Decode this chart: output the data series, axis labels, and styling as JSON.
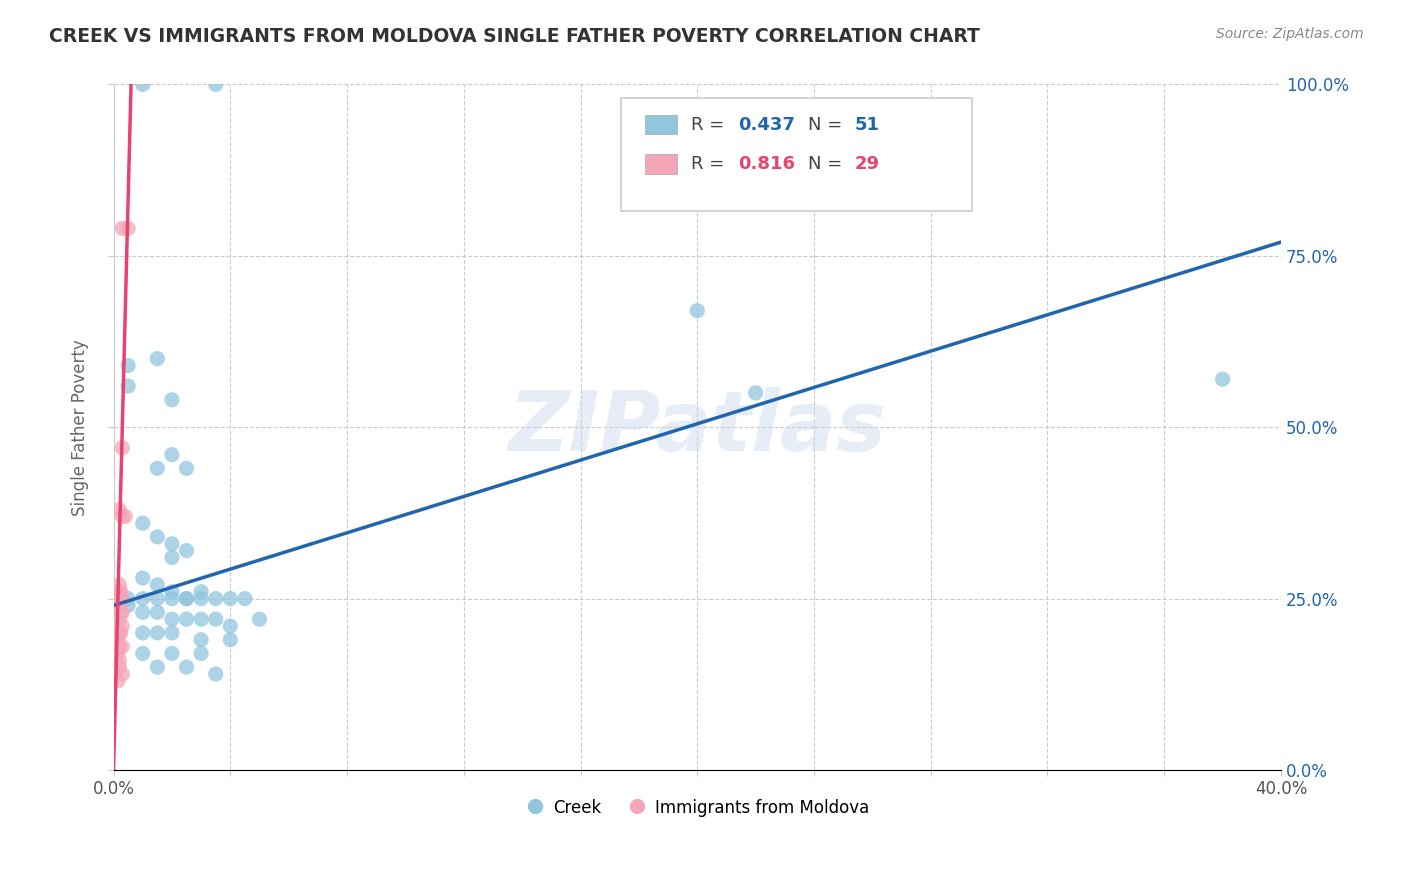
{
  "title": "CREEK VS IMMIGRANTS FROM MOLDOVA SINGLE FATHER POVERTY CORRELATION CHART",
  "source": "Source: ZipAtlas.com",
  "ylabel": "Single Father Poverty",
  "legend_creek": "Creek",
  "legend_moldova": "Immigrants from Moldova",
  "legend_r_creek": "0.437",
  "legend_n_creek": "51",
  "legend_r_moldova": "0.816",
  "legend_n_moldova": "29",
  "watermark": "ZIPatlas",
  "creek_color": "#92c5de",
  "moldova_color": "#f4a6b8",
  "creek_line_color": "#2166ac",
  "moldova_line_color": "#e8436e",
  "creek_scatter": [
    [
      0.5,
      56
    ],
    [
      0.5,
      59
    ],
    [
      1.0,
      100
    ],
    [
      3.5,
      100
    ],
    [
      1.5,
      60
    ],
    [
      2.0,
      54
    ],
    [
      1.5,
      44
    ],
    [
      2.0,
      46
    ],
    [
      2.5,
      44
    ],
    [
      1.0,
      36
    ],
    [
      1.5,
      34
    ],
    [
      2.0,
      33
    ],
    [
      2.0,
      31
    ],
    [
      2.5,
      32
    ],
    [
      1.0,
      28
    ],
    [
      1.5,
      27
    ],
    [
      2.0,
      26
    ],
    [
      2.5,
      25
    ],
    [
      3.0,
      26
    ],
    [
      0.5,
      25
    ],
    [
      1.0,
      25
    ],
    [
      1.5,
      25
    ],
    [
      2.0,
      25
    ],
    [
      2.5,
      25
    ],
    [
      3.0,
      25
    ],
    [
      3.5,
      25
    ],
    [
      4.0,
      25
    ],
    [
      4.5,
      25
    ],
    [
      0.5,
      24
    ],
    [
      1.0,
      23
    ],
    [
      1.5,
      23
    ],
    [
      2.0,
      22
    ],
    [
      2.5,
      22
    ],
    [
      3.0,
      22
    ],
    [
      3.5,
      22
    ],
    [
      4.0,
      21
    ],
    [
      5.0,
      22
    ],
    [
      1.0,
      20
    ],
    [
      1.5,
      20
    ],
    [
      2.0,
      20
    ],
    [
      3.0,
      19
    ],
    [
      4.0,
      19
    ],
    [
      1.0,
      17
    ],
    [
      2.0,
      17
    ],
    [
      3.0,
      17
    ],
    [
      1.5,
      15
    ],
    [
      2.5,
      15
    ],
    [
      3.5,
      14
    ],
    [
      20.0,
      67
    ],
    [
      22.0,
      55
    ],
    [
      38.0,
      57
    ]
  ],
  "moldova_scatter": [
    [
      0.3,
      79
    ],
    [
      0.5,
      79
    ],
    [
      0.3,
      47
    ],
    [
      0.2,
      38
    ],
    [
      0.3,
      37
    ],
    [
      0.4,
      37
    ],
    [
      0.2,
      27
    ],
    [
      0.2,
      26
    ],
    [
      0.25,
      26
    ],
    [
      0.15,
      25
    ],
    [
      0.2,
      25
    ],
    [
      0.25,
      25
    ],
    [
      0.3,
      25
    ],
    [
      0.15,
      24
    ],
    [
      0.2,
      24
    ],
    [
      0.25,
      23
    ],
    [
      0.3,
      23
    ],
    [
      0.2,
      22
    ],
    [
      0.3,
      21
    ],
    [
      0.2,
      20
    ],
    [
      0.25,
      20
    ],
    [
      0.15,
      19
    ],
    [
      0.2,
      18
    ],
    [
      0.3,
      18
    ],
    [
      0.15,
      17
    ],
    [
      0.2,
      16
    ],
    [
      0.2,
      15
    ],
    [
      0.3,
      14
    ],
    [
      0.15,
      13
    ]
  ],
  "xlim": [
    0.0,
    40.0
  ],
  "ylim": [
    0.0,
    100.0
  ],
  "xtick_positions": [
    0.0,
    4.0,
    8.0,
    12.0,
    16.0,
    20.0,
    24.0,
    28.0,
    32.0,
    36.0,
    40.0
  ],
  "xtick_labels_show": {
    "0.0": "0.0%",
    "40.0": "40.0%"
  },
  "ytick_vals": [
    0.0,
    25.0,
    50.0,
    75.0,
    100.0
  ],
  "ytick_labels": [
    "0.0%",
    "25.0%",
    "50.0%",
    "75.0%",
    "100.0%"
  ],
  "background_color": "#ffffff",
  "grid_color": "#cccccc"
}
